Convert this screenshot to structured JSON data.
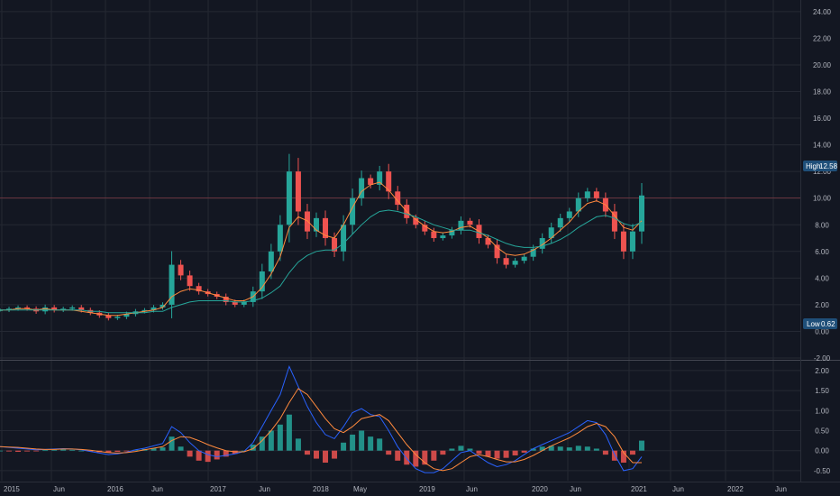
{
  "chart_data": [
    {
      "type": "candlestick",
      "x_labels": [
        "2015",
        "Jun",
        "2016",
        "Jun",
        "2017",
        "Jun",
        "2018",
        "May",
        "2019",
        "Jun",
        "2020",
        "Jun",
        "2021",
        "Jun",
        "2022",
        "Jun"
      ],
      "y_ticks": [
        "24.00",
        "22.00",
        "20.00",
        "18.00",
        "16.00",
        "14.00",
        "12.00",
        "10.00",
        "8.00",
        "6.00",
        "4.00",
        "2.00",
        "0.00",
        "-2.00"
      ],
      "ylim": [
        -2,
        24.6
      ],
      "high_label": "High",
      "high_value": "12.58",
      "low_label": "Low",
      "low_value": "0.62",
      "last_price": 10.0,
      "series": [
        {
          "name": "",
          "kind": "price",
          "values": [
            1.6,
            1.7,
            1.8,
            1.7,
            1.5,
            1.8,
            1.6,
            1.7,
            1.8,
            1.6,
            1.4,
            1.2,
            1.0,
            1.1,
            1.3,
            1.5,
            1.6,
            1.8,
            2.0,
            5.0,
            4.2,
            3.4,
            3.0,
            2.8,
            2.6,
            2.2,
            2.0,
            2.2,
            3.0,
            4.5,
            6.0,
            8.0,
            12.0,
            9.0,
            7.5,
            8.5,
            7.0,
            6.0,
            8.0,
            10.0,
            11.5,
            11.0,
            12.0,
            10.5,
            9.5,
            8.5,
            8.0,
            7.5,
            7.0,
            7.2,
            7.6,
            8.3,
            8.0,
            7.0,
            6.5,
            5.5,
            5.0,
            5.3,
            5.6,
            6.2,
            7.0,
            7.8,
            8.5,
            9.0,
            10.0,
            10.5,
            10.0,
            9.0,
            7.5,
            6.0,
            7.5,
            10.2
          ]
        },
        {
          "name": "",
          "kind": "ma_fast",
          "values": [
            1.6,
            1.6,
            1.7,
            1.7,
            1.6,
            1.7,
            1.6,
            1.6,
            1.6,
            1.5,
            1.4,
            1.3,
            1.2,
            1.2,
            1.3,
            1.4,
            1.5,
            1.6,
            1.8,
            2.6,
            3.0,
            3.2,
            3.1,
            2.9,
            2.7,
            2.5,
            2.3,
            2.3,
            2.6,
            3.3,
            4.3,
            5.6,
            7.8,
            8.6,
            8.3,
            7.6,
            7.2,
            7.0,
            8.0,
            9.3,
            10.5,
            11.0,
            11.2,
            10.6,
            9.8,
            9.0,
            8.4,
            7.9,
            7.5,
            7.4,
            7.5,
            7.8,
            7.9,
            7.5,
            7.0,
            6.3,
            5.8,
            5.7,
            5.8,
            6.1,
            6.5,
            7.0,
            7.6,
            8.2,
            9.0,
            9.6,
            9.8,
            9.5,
            8.7,
            7.8,
            7.6,
            8.3
          ]
        },
        {
          "name": "",
          "kind": "ma_slow",
          "values": [
            1.6,
            1.6,
            1.6,
            1.6,
            1.6,
            1.6,
            1.6,
            1.6,
            1.6,
            1.6,
            1.5,
            1.5,
            1.4,
            1.4,
            1.4,
            1.4,
            1.4,
            1.5,
            1.5,
            1.8,
            2.0,
            2.2,
            2.3,
            2.3,
            2.3,
            2.3,
            2.2,
            2.2,
            2.3,
            2.5,
            2.9,
            3.4,
            4.4,
            5.2,
            5.7,
            6.0,
            6.1,
            6.1,
            6.6,
            7.3,
            8.0,
            8.6,
            9.0,
            9.1,
            9.0,
            8.8,
            8.6,
            8.3,
            8.0,
            7.8,
            7.6,
            7.6,
            7.6,
            7.4,
            7.2,
            6.9,
            6.6,
            6.4,
            6.3,
            6.3,
            6.4,
            6.6,
            6.9,
            7.3,
            7.8,
            8.2,
            8.6,
            8.7,
            8.5,
            8.1,
            7.9,
            8.2
          ]
        }
      ]
    },
    {
      "type": "histogram",
      "y_ticks": [
        "2.00",
        "1.50",
        "1.00",
        "0.50",
        "0.00",
        "-0.50"
      ],
      "ylim": [
        -0.75,
        2.2
      ],
      "series": [
        {
          "name": "",
          "kind": "histogram",
          "values": [
            0.0,
            -0.02,
            -0.03,
            -0.02,
            -0.01,
            0.01,
            0.02,
            0.03,
            0.02,
            0.0,
            -0.02,
            -0.04,
            -0.05,
            -0.03,
            -0.01,
            0.02,
            0.04,
            0.06,
            0.08,
            0.35,
            0.1,
            -0.15,
            -0.25,
            -0.28,
            -0.22,
            -0.15,
            -0.08,
            0.0,
            0.15,
            0.35,
            0.5,
            0.65,
            0.9,
            0.3,
            -0.1,
            -0.2,
            -0.3,
            -0.2,
            0.2,
            0.4,
            0.5,
            0.35,
            0.3,
            -0.1,
            -0.25,
            -0.35,
            -0.4,
            -0.35,
            -0.25,
            -0.1,
            0.05,
            0.12,
            0.05,
            -0.08,
            -0.15,
            -0.2,
            -0.18,
            -0.12,
            -0.05,
            0.05,
            0.1,
            0.12,
            0.1,
            0.08,
            0.12,
            0.1,
            0.05,
            -0.1,
            -0.25,
            -0.3,
            -0.1,
            0.25
          ]
        },
        {
          "name": "",
          "kind": "macd",
          "values": [
            0.1,
            0.08,
            0.06,
            0.04,
            0.02,
            0.03,
            0.04,
            0.05,
            0.04,
            0.02,
            -0.02,
            -0.06,
            -0.1,
            -0.08,
            -0.04,
            0.02,
            0.06,
            0.12,
            0.18,
            0.6,
            0.45,
            0.2,
            0.0,
            -0.1,
            -0.15,
            -0.12,
            -0.08,
            -0.02,
            0.2,
            0.6,
            1.0,
            1.4,
            2.1,
            1.6,
            1.1,
            0.7,
            0.4,
            0.3,
            0.6,
            0.95,
            1.05,
            0.9,
            0.85,
            0.5,
            0.1,
            -0.2,
            -0.45,
            -0.55,
            -0.55,
            -0.45,
            -0.25,
            -0.05,
            0.0,
            -0.15,
            -0.3,
            -0.4,
            -0.35,
            -0.25,
            -0.1,
            0.05,
            0.15,
            0.25,
            0.35,
            0.45,
            0.6,
            0.75,
            0.7,
            0.4,
            -0.1,
            -0.5,
            -0.45,
            -0.15
          ]
        },
        {
          "name": "",
          "kind": "signal",
          "values": [
            0.1,
            0.09,
            0.08,
            0.06,
            0.04,
            0.03,
            0.03,
            0.04,
            0.04,
            0.03,
            0.01,
            -0.02,
            -0.05,
            -0.06,
            -0.05,
            -0.02,
            0.02,
            0.06,
            0.1,
            0.25,
            0.35,
            0.33,
            0.25,
            0.15,
            0.07,
            0.0,
            -0.03,
            -0.03,
            0.05,
            0.25,
            0.5,
            0.8,
            1.2,
            1.55,
            1.4,
            1.1,
            0.8,
            0.55,
            0.45,
            0.6,
            0.8,
            0.85,
            0.9,
            0.75,
            0.45,
            0.15,
            -0.1,
            -0.3,
            -0.45,
            -0.5,
            -0.45,
            -0.3,
            -0.15,
            -0.1,
            -0.15,
            -0.22,
            -0.28,
            -0.28,
            -0.22,
            -0.12,
            0.0,
            0.12,
            0.22,
            0.32,
            0.45,
            0.6,
            0.68,
            0.6,
            0.35,
            -0.05,
            -0.3,
            -0.3
          ]
        }
      ]
    }
  ]
}
